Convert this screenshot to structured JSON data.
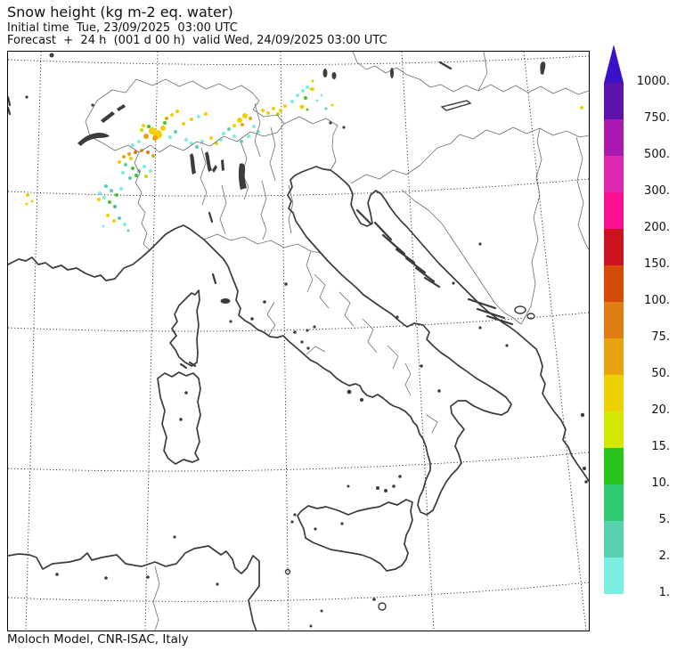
{
  "header": {
    "title": "Snow height (kg m-2 eq. water)",
    "initial_time_line": "Initial time  Tue, 23/09/2025  03:00 UTC",
    "forecast_line": "Forecast  +  24 h  (001 d 00 h)  valid Wed, 24/09/2025 03:00 UTC"
  },
  "footer": {
    "credit": "Moloch Model, CNR-ISAC, Italy"
  },
  "colorbar": {
    "ticks": [
      "1000.",
      "750.",
      "500.",
      "300.",
      "200.",
      "150.",
      "100.",
      "75.",
      "50.",
      "20.",
      "15.",
      "10.",
      "5.",
      "2.",
      "1."
    ],
    "segment_colors_top_to_bottom": [
      "#5e12aa",
      "#a81ab0",
      "#dd28b2",
      "#fa1090",
      "#cc1322",
      "#d44a08",
      "#e07d12",
      "#e8a310",
      "#eed002",
      "#d2e800",
      "#2ac41e",
      "#30c970",
      "#58cfae",
      "#7ceee1"
    ],
    "arrow_color": "#3a10c8"
  },
  "snow": {
    "palette": {
      "y": "#f0d000",
      "o": "#e8a310",
      "d": "#e07818",
      "l": "#b8e000",
      "g": "#3cc828",
      "s": "#30c970",
      "t": "#58cfae",
      "c": "#7ceee1"
    },
    "points": [
      [
        162,
        89,
        4,
        "y"
      ],
      [
        168,
        93,
        5,
        "y"
      ],
      [
        174,
        86,
        3,
        "y"
      ],
      [
        155,
        95,
        3,
        "o"
      ],
      [
        165,
        97,
        3,
        "o"
      ],
      [
        150,
        88,
        2,
        "l"
      ],
      [
        147,
        101,
        2,
        "c"
      ],
      [
        140,
        105,
        2,
        "c"
      ],
      [
        182,
        96,
        2,
        "c"
      ],
      [
        188,
        90,
        2,
        "t"
      ],
      [
        152,
        83,
        2,
        "y"
      ],
      [
        178,
        75,
        2,
        "o"
      ],
      [
        184,
        71,
        2,
        "y"
      ],
      [
        190,
        67,
        2,
        "y"
      ],
      [
        197,
        81,
        2,
        "y"
      ],
      [
        206,
        76,
        2,
        "y"
      ],
      [
        214,
        73,
        2,
        "c"
      ],
      [
        222,
        70,
        2,
        "y"
      ],
      [
        200,
        99,
        2,
        "c"
      ],
      [
        206,
        103,
        2,
        "c"
      ],
      [
        212,
        107,
        2,
        "t"
      ],
      [
        218,
        101,
        2,
        "c"
      ],
      [
        228,
        97,
        2,
        "y"
      ],
      [
        234,
        103,
        2,
        "y"
      ],
      [
        176,
        80,
        2,
        "g"
      ],
      [
        158,
        84,
        2,
        "g"
      ],
      [
        130,
        118,
        2,
        "o"
      ],
      [
        136,
        115,
        2,
        "o"
      ],
      [
        143,
        113,
        2,
        "d"
      ],
      [
        150,
        111,
        2,
        "o"
      ],
      [
        157,
        113,
        2,
        "d"
      ],
      [
        163,
        117,
        2,
        "o"
      ],
      [
        125,
        124,
        2,
        "y"
      ],
      [
        138,
        120,
        2,
        "y"
      ],
      [
        132,
        127,
        2,
        "t"
      ],
      [
        140,
        131,
        2,
        "g"
      ],
      [
        147,
        134,
        2,
        "t"
      ],
      [
        153,
        129,
        2,
        "c"
      ],
      [
        144,
        139,
        2,
        "g"
      ],
      [
        137,
        142,
        2,
        "t"
      ],
      [
        129,
        136,
        2,
        "c"
      ],
      [
        160,
        134,
        2,
        "c"
      ],
      [
        155,
        140,
        2,
        "l"
      ],
      [
        110,
        151,
        2,
        "t"
      ],
      [
        116,
        156,
        2,
        "t"
      ],
      [
        122,
        161,
        2,
        "g"
      ],
      [
        108,
        164,
        2,
        "c"
      ],
      [
        114,
        169,
        2,
        "g"
      ],
      [
        120,
        174,
        2,
        "s"
      ],
      [
        127,
        154,
        2,
        "c"
      ],
      [
        103,
        159,
        2,
        "c"
      ],
      [
        102,
        166,
        2,
        "y"
      ],
      [
        112,
        184,
        2,
        "y"
      ],
      [
        119,
        190,
        2,
        "y"
      ],
      [
        125,
        187,
        2,
        "t"
      ],
      [
        131,
        194,
        2,
        "c"
      ],
      [
        107,
        196,
        1.5,
        "c"
      ],
      [
        135,
        201,
        1.5,
        "t"
      ],
      [
        22,
        161,
        2,
        "y"
      ],
      [
        27,
        168,
        1.5,
        "y"
      ],
      [
        21,
        171,
        1.5,
        "y"
      ],
      [
        242,
        92,
        2,
        "c"
      ],
      [
        239,
        99,
        2,
        "c"
      ],
      [
        248,
        87,
        2,
        "t"
      ],
      [
        254,
        83,
        2,
        "y"
      ],
      [
        260,
        77,
        3,
        "y"
      ],
      [
        266,
        72,
        3,
        "y"
      ],
      [
        272,
        75,
        2,
        "o"
      ],
      [
        263,
        82,
        2,
        "o"
      ],
      [
        276,
        84,
        2,
        "c"
      ],
      [
        281,
        90,
        2,
        "c"
      ],
      [
        286,
        66,
        2,
        "y"
      ],
      [
        292,
        69,
        2,
        "y"
      ],
      [
        298,
        64,
        2,
        "y"
      ],
      [
        254,
        95,
        2,
        "c"
      ],
      [
        262,
        101,
        2,
        "t"
      ],
      [
        270,
        95,
        2,
        "c"
      ],
      [
        306,
        66,
        2,
        "y"
      ],
      [
        311,
        61,
        2,
        "y"
      ],
      [
        303,
        70,
        2,
        "l"
      ],
      [
        319,
        56,
        2,
        "c"
      ],
      [
        325,
        49,
        2,
        "c"
      ],
      [
        331,
        44,
        2,
        "c"
      ],
      [
        336,
        40,
        2,
        "c"
      ],
      [
        334,
        52,
        2,
        "g"
      ],
      [
        342,
        42,
        2,
        "y"
      ],
      [
        330,
        62,
        2.5,
        "y"
      ],
      [
        336,
        65,
        1.5,
        "g"
      ],
      [
        340,
        42,
        1.5,
        "l"
      ],
      [
        342,
        33,
        1.5,
        "l"
      ],
      [
        352,
        49,
        1.5,
        "c"
      ],
      [
        347,
        55,
        1.5,
        "c"
      ],
      [
        357,
        64,
        1.5,
        "t"
      ],
      [
        364,
        60,
        1.5,
        "y"
      ],
      [
        644,
        63,
        2,
        "y"
      ]
    ]
  }
}
